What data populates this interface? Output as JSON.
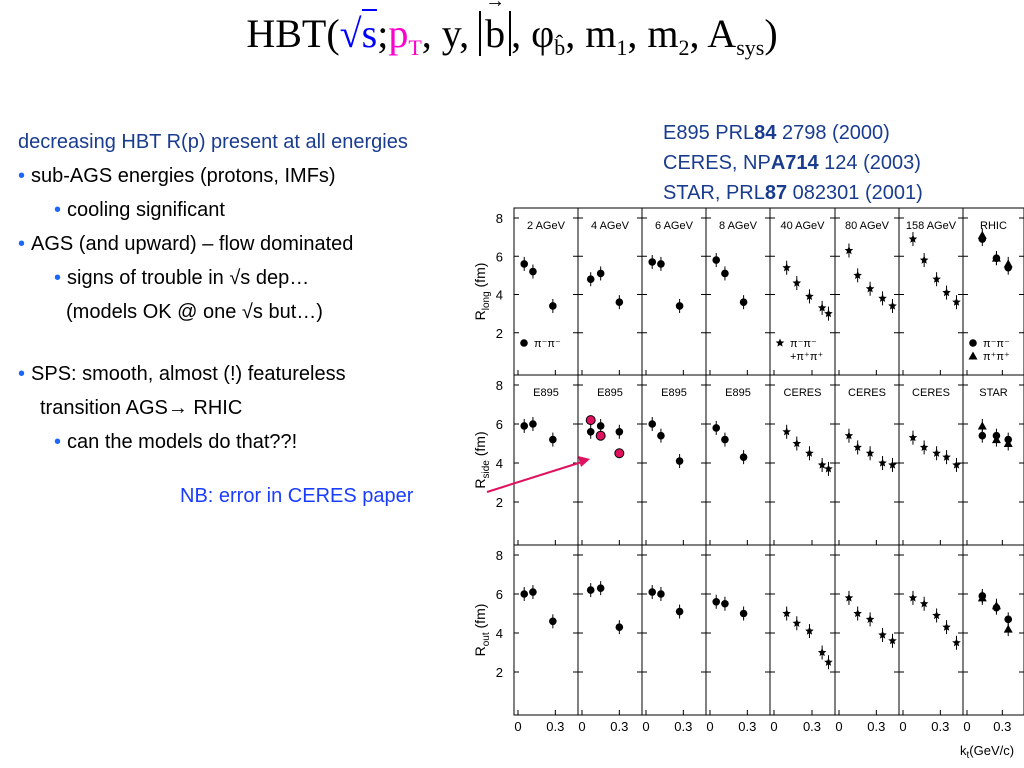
{
  "slide": {
    "formula": {
      "prefix": "HBT(",
      "sqrt_sym": "√",
      "s": "s",
      "sep1": ";",
      "pT_p": "p",
      "pT_sub": "T",
      "sep2": ", y, ",
      "b": "b",
      "sep3": ", φ",
      "phi_sub": "b̂",
      "sep4": ", m",
      "m1_sub": "1",
      "sep5": ", m",
      "m2_sub": "2",
      "sep6": ", A",
      "a_sub": "sys",
      "suffix": ")"
    },
    "refs": [
      {
        "pre": "E895 PRL",
        "bold": "84",
        "post": " 2798 (2000)"
      },
      {
        "pre": "CERES, NP",
        "bold": "A714",
        "post": " 124 (2003)"
      },
      {
        "pre": "STAR, PRL",
        "bold": "87",
        "post": " 082301 (2001)"
      }
    ],
    "bullets": {
      "head": "decreasing HBT R(p) present at all energies",
      "b1": "sub-AGS energies (protons, IMFs)",
      "b1a": "cooling significant",
      "b2": "AGS (and upward) – flow dominated",
      "b2a": "signs of trouble in √s dep…",
      "b2b": "(models OK @ one √s but…)",
      "b3a": "SPS: smooth, almost (!) featureless",
      "b3b": "transition AGS→ RHIC",
      "b3c": "can the models do that??!"
    },
    "bullet_char": "•",
    "nb_note": "NB: error in CERES paper",
    "colors": {
      "title_blue": "#1a3c8f",
      "bullet_blue": "#1a66ff",
      "note_blue": "#1a3cff",
      "highlight": "#ff00cc",
      "arrow": "#e0115f"
    }
  },
  "chart_data": {
    "type": "scatter",
    "xlabel": "k_t(GeV/c)",
    "xlim": [
      0,
      0.45
    ],
    "ylim": [
      0,
      8
    ],
    "xticks": [
      0,
      0.3
    ],
    "yticks": [
      2,
      4,
      6,
      8
    ],
    "columns": [
      "2 AGeV",
      "4 AGeV",
      "6 AGeV",
      "8 AGeV",
      "40 AGeV",
      "80 AGeV",
      "158 AGeV",
      "RHIC"
    ],
    "rows": [
      {
        "ylabel": "R_long (fm)",
        "labels": [
          "2 AGeV",
          "4 AGeV",
          "6 AGeV",
          "8 AGeV",
          "40 AGeV",
          "80 AGeV",
          "158 AGeV",
          "RHIC"
        ],
        "panels": [
          {
            "series": [
              {
                "marker": "circle",
                "x": [
                  0.05,
                  0.12,
                  0.28
                ],
                "y": [
                  5.6,
                  5.2,
                  3.4
                ]
              }
            ]
          },
          {
            "series": [
              {
                "marker": "circle",
                "x": [
                  0.07,
                  0.15,
                  0.3
                ],
                "y": [
                  4.8,
                  5.1,
                  3.6
                ]
              }
            ]
          },
          {
            "series": [
              {
                "marker": "circle",
                "x": [
                  0.05,
                  0.12,
                  0.27
                ],
                "y": [
                  5.7,
                  5.6,
                  3.4
                ]
              }
            ]
          },
          {
            "series": [
              {
                "marker": "circle",
                "x": [
                  0.05,
                  0.12,
                  0.27
                ],
                "y": [
                  5.8,
                  5.1,
                  3.6
                ]
              }
            ]
          },
          {
            "series": [
              {
                "marker": "star",
                "x": [
                  0.1,
                  0.18,
                  0.28,
                  0.38,
                  0.43
                ],
                "y": [
                  5.4,
                  4.6,
                  3.9,
                  3.3,
                  3.0
                ]
              }
            ]
          },
          {
            "series": [
              {
                "marker": "star",
                "x": [
                  0.08,
                  0.15,
                  0.25,
                  0.35,
                  0.43
                ],
                "y": [
                  6.3,
                  5.0,
                  4.3,
                  3.8,
                  3.4
                ]
              }
            ]
          },
          {
            "series": [
              {
                "marker": "star",
                "x": [
                  0.08,
                  0.17,
                  0.27,
                  0.35,
                  0.43
                ],
                "y": [
                  6.9,
                  5.8,
                  4.8,
                  4.1,
                  3.6
                ]
              }
            ]
          },
          {
            "series": [
              {
                "marker": "circle",
                "x": [
                  0.13,
                  0.25,
                  0.35
                ],
                "y": [
                  6.9,
                  5.9,
                  5.4
                ]
              },
              {
                "marker": "triangle",
                "x": [
                  0.13,
                  0.25,
                  0.35
                ],
                "y": [
                  7.1,
                  5.9,
                  5.6
                ]
              }
            ]
          }
        ],
        "legends": [
          {
            "panel": 0,
            "items": [
              {
                "marker": "circle",
                "text": "π⁻π⁻"
              }
            ]
          },
          {
            "panel": 4,
            "items": [
              {
                "marker": "star",
                "text": "π⁻π⁻"
              },
              {
                "marker": "none",
                "text": "+π⁺π⁺"
              }
            ]
          },
          {
            "panel": 7,
            "items": [
              {
                "marker": "circle",
                "text": "π⁻π⁻"
              },
              {
                "marker": "triangle",
                "text": "π⁺π⁺"
              }
            ]
          }
        ]
      },
      {
        "ylabel": "R_side (fm)",
        "labels": [
          "E895",
          "E895",
          "E895",
          "E895",
          "CERES",
          "CERES",
          "CERES",
          "STAR"
        ],
        "panels": [
          {
            "series": [
              {
                "marker": "circle",
                "x": [
                  0.05,
                  0.12,
                  0.28
                ],
                "y": [
                  5.9,
                  6.0,
                  5.2
                ]
              }
            ]
          },
          {
            "series": [
              {
                "marker": "circle",
                "x": [
                  0.07,
                  0.15,
                  0.3
                ],
                "y": [
                  5.6,
                  5.9,
                  5.6
                ]
              },
              {
                "marker": "hollow",
                "x": [
                  0.07,
                  0.15,
                  0.3
                ],
                "y": [
                  6.2,
                  5.4,
                  4.5
                ]
              }
            ]
          },
          {
            "series": [
              {
                "marker": "circle",
                "x": [
                  0.05,
                  0.12,
                  0.27
                ],
                "y": [
                  6.0,
                  5.4,
                  4.1
                ]
              }
            ]
          },
          {
            "series": [
              {
                "marker": "circle",
                "x": [
                  0.05,
                  0.12,
                  0.27
                ],
                "y": [
                  5.8,
                  5.2,
                  4.3
                ]
              }
            ]
          },
          {
            "series": [
              {
                "marker": "star",
                "x": [
                  0.1,
                  0.18,
                  0.28,
                  0.38,
                  0.43
                ],
                "y": [
                  5.6,
                  5.0,
                  4.5,
                  3.9,
                  3.7
                ]
              }
            ]
          },
          {
            "series": [
              {
                "marker": "star",
                "x": [
                  0.08,
                  0.15,
                  0.25,
                  0.35,
                  0.43
                ],
                "y": [
                  5.4,
                  4.8,
                  4.5,
                  4.0,
                  3.9
                ]
              }
            ]
          },
          {
            "series": [
              {
                "marker": "star",
                "x": [
                  0.08,
                  0.17,
                  0.27,
                  0.35,
                  0.43
                ],
                "y": [
                  5.3,
                  4.8,
                  4.5,
                  4.3,
                  3.9
                ]
              }
            ]
          },
          {
            "series": [
              {
                "marker": "circle",
                "x": [
                  0.13,
                  0.25,
                  0.35
                ],
                "y": [
                  5.4,
                  5.4,
                  5.2
                ]
              },
              {
                "marker": "triangle",
                "x": [
                  0.13,
                  0.25,
                  0.35
                ],
                "y": [
                  5.9,
                  5.2,
                  5.0
                ]
              }
            ]
          }
        ]
      },
      {
        "ylabel": "R_out (fm)",
        "labels": [],
        "panels": [
          {
            "series": [
              {
                "marker": "circle",
                "x": [
                  0.05,
                  0.12,
                  0.28
                ],
                "y": [
                  6.0,
                  6.1,
                  4.6
                ]
              }
            ]
          },
          {
            "series": [
              {
                "marker": "circle",
                "x": [
                  0.07,
                  0.15,
                  0.3
                ],
                "y": [
                  6.2,
                  6.3,
                  4.3
                ]
              }
            ]
          },
          {
            "series": [
              {
                "marker": "circle",
                "x": [
                  0.05,
                  0.12,
                  0.27
                ],
                "y": [
                  6.1,
                  6.0,
                  5.1
                ]
              }
            ]
          },
          {
            "series": [
              {
                "marker": "circle",
                "x": [
                  0.05,
                  0.12,
                  0.27
                ],
                "y": [
                  5.6,
                  5.5,
                  5.0
                ]
              }
            ]
          },
          {
            "series": [
              {
                "marker": "star",
                "x": [
                  0.1,
                  0.18,
                  0.28,
                  0.38,
                  0.43
                ],
                "y": [
                  5.0,
                  4.5,
                  4.1,
                  3.0,
                  2.5
                ]
              }
            ]
          },
          {
            "series": [
              {
                "marker": "star",
                "x": [
                  0.08,
                  0.15,
                  0.25,
                  0.35,
                  0.43
                ],
                "y": [
                  5.8,
                  5.0,
                  4.7,
                  3.9,
                  3.6
                ]
              }
            ]
          },
          {
            "series": [
              {
                "marker": "star",
                "x": [
                  0.08,
                  0.17,
                  0.27,
                  0.35,
                  0.43
                ],
                "y": [
                  5.8,
                  5.5,
                  4.9,
                  4.3,
                  3.5
                ]
              }
            ]
          },
          {
            "series": [
              {
                "marker": "circle",
                "x": [
                  0.13,
                  0.25,
                  0.35
                ],
                "y": [
                  5.9,
                  5.3,
                  4.7
                ]
              },
              {
                "marker": "triangle",
                "x": [
                  0.13,
                  0.25,
                  0.35
                ],
                "y": [
                  5.8,
                  5.4,
                  4.2
                ]
              }
            ]
          }
        ]
      }
    ]
  }
}
